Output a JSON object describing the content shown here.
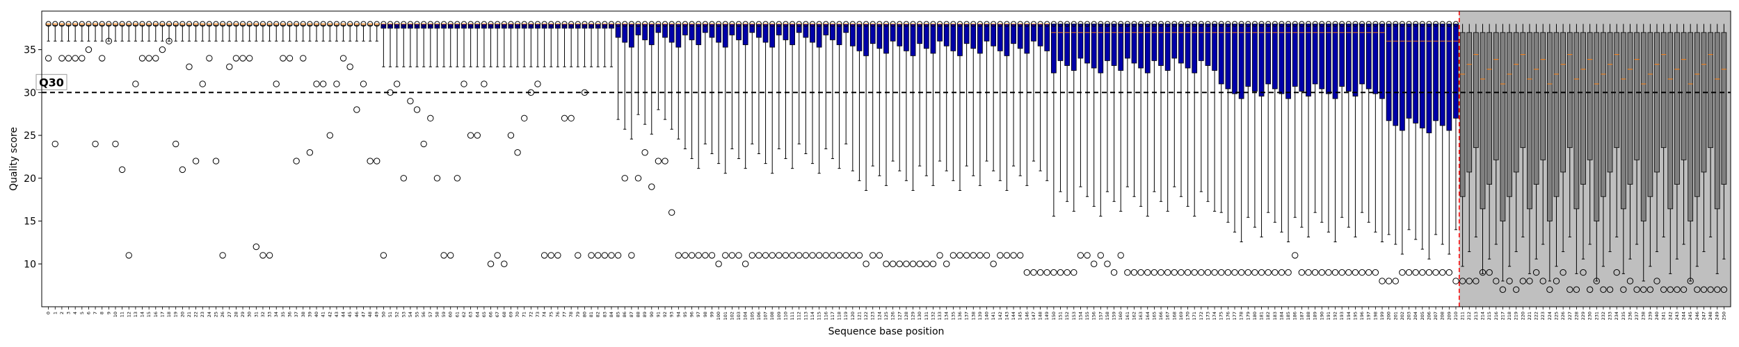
{
  "chart_data": {
    "type": "boxplot",
    "xlabel": "Sequence base position",
    "ylabel": "Quality score",
    "ylim": [
      5,
      39.5
    ],
    "yticks": [
      10,
      15,
      20,
      25,
      30,
      35
    ],
    "positions": {
      "start": 0,
      "end": 250,
      "label_every": 1
    },
    "threshold": {
      "value": 30,
      "label": "Q30"
    },
    "cutoff_position": 211,
    "grid": false,
    "colors": {
      "good_box": "#f3cba6",
      "low_box": "#0000a8",
      "trimmed_box": "#808080",
      "trimmed_region": "#bfbfbf",
      "median_good": "#ff7f0e",
      "median_trimmed": "#ff7f0e",
      "cutoff_line": "#ff0000"
    },
    "segments": [
      {
        "from": 0,
        "to": 49,
        "q1": 38,
        "median": 38,
        "q3": 38,
        "whisker_low": 36,
        "whisker_high": 38
      },
      {
        "from": 50,
        "to": 84,
        "q1": 37.5,
        "median": 38,
        "q3": 38,
        "whisker_low": 33,
        "whisker_high": 38
      },
      {
        "from": 85,
        "to": 94,
        "q1": 37,
        "median": 38,
        "q3": 38,
        "whisker_low": 28,
        "whisker_high": 38
      },
      {
        "from": 95,
        "to": 119,
        "q1": 37,
        "median": 38,
        "q3": 38,
        "whisker_low": 24,
        "whisker_high": 38
      },
      {
        "from": 120,
        "to": 149,
        "q1": 36,
        "median": 38,
        "q3": 38,
        "whisker_low": 22,
        "whisker_high": 38
      },
      {
        "from": 150,
        "to": 174,
        "q1": 34,
        "median": 37,
        "q3": 38,
        "whisker_low": 19,
        "whisker_high": 38
      },
      {
        "from": 175,
        "to": 199,
        "q1": 31,
        "median": 37,
        "q3": 38,
        "whisker_low": 16,
        "whisker_high": 38
      },
      {
        "from": 200,
        "to": 210,
        "q1": 27,
        "median": 36,
        "q3": 38,
        "whisker_low": 14,
        "whisker_high": 38
      },
      {
        "from": 211,
        "to": 250,
        "q1": 20,
        "median": 33,
        "q3": 37,
        "whisker_low": 8,
        "whisker_high": 38
      }
    ],
    "outliers": [
      [
        0,
        34
      ],
      [
        1,
        24
      ],
      [
        2,
        34
      ],
      [
        3,
        34
      ],
      [
        4,
        34
      ],
      [
        5,
        34
      ],
      [
        6,
        35
      ],
      [
        7,
        24
      ],
      [
        8,
        34
      ],
      [
        9,
        36
      ],
      [
        10,
        24
      ],
      [
        11,
        21
      ],
      [
        12,
        11
      ],
      [
        13,
        31
      ],
      [
        14,
        34
      ],
      [
        15,
        34
      ],
      [
        16,
        34
      ],
      [
        17,
        35
      ],
      [
        18,
        36
      ],
      [
        19,
        24
      ],
      [
        20,
        21
      ],
      [
        21,
        33
      ],
      [
        22,
        22
      ],
      [
        23,
        31
      ],
      [
        24,
        34
      ],
      [
        25,
        22
      ],
      [
        26,
        11
      ],
      [
        27,
        33
      ],
      [
        28,
        34
      ],
      [
        29,
        34
      ],
      [
        30,
        34
      ],
      [
        31,
        12
      ],
      [
        32,
        11
      ],
      [
        33,
        11
      ],
      [
        34,
        31
      ],
      [
        35,
        34
      ],
      [
        36,
        34
      ],
      [
        37,
        22
      ],
      [
        38,
        34
      ],
      [
        39,
        23
      ],
      [
        40,
        31
      ],
      [
        41,
        31
      ],
      [
        42,
        25
      ],
      [
        43,
        31
      ],
      [
        44,
        34
      ],
      [
        45,
        33
      ],
      [
        46,
        28
      ],
      [
        47,
        31
      ],
      [
        48,
        22
      ],
      [
        49,
        22
      ],
      [
        50,
        11
      ],
      [
        51,
        30
      ],
      [
        52,
        31
      ],
      [
        53,
        20
      ],
      [
        54,
        29
      ],
      [
        55,
        28
      ],
      [
        56,
        24
      ],
      [
        57,
        27
      ],
      [
        58,
        20
      ],
      [
        59,
        11
      ],
      [
        60,
        11
      ],
      [
        61,
        20
      ],
      [
        62,
        31
      ],
      [
        63,
        25
      ],
      [
        64,
        25
      ],
      [
        65,
        31
      ],
      [
        66,
        10
      ],
      [
        67,
        11
      ],
      [
        68,
        10
      ],
      [
        69,
        25
      ],
      [
        70,
        23
      ],
      [
        71,
        27
      ],
      [
        72,
        30
      ],
      [
        73,
        31
      ],
      [
        74,
        11
      ],
      [
        75,
        11
      ],
      [
        76,
        11
      ],
      [
        77,
        27
      ],
      [
        78,
        27
      ],
      [
        79,
        11
      ],
      [
        80,
        30
      ],
      [
        81,
        11
      ],
      [
        82,
        11
      ],
      [
        83,
        11
      ],
      [
        84,
        11
      ],
      [
        85,
        11
      ],
      [
        86,
        20
      ],
      [
        87,
        11
      ],
      [
        88,
        20
      ],
      [
        89,
        23
      ],
      [
        90,
        19
      ],
      [
        91,
        22
      ],
      [
        92,
        22
      ],
      [
        93,
        16
      ],
      [
        94,
        11
      ],
      [
        95,
        11
      ],
      [
        96,
        11
      ],
      [
        97,
        11
      ],
      [
        98,
        11
      ],
      [
        99,
        11
      ],
      [
        100,
        10
      ],
      [
        101,
        11
      ],
      [
        102,
        11
      ],
      [
        103,
        11
      ],
      [
        104,
        10
      ],
      [
        105,
        11
      ],
      [
        106,
        11
      ],
      [
        107,
        11
      ],
      [
        108,
        11
      ],
      [
        109,
        11
      ],
      [
        110,
        11
      ],
      [
        111,
        11
      ],
      [
        112,
        11
      ],
      [
        113,
        11
      ],
      [
        114,
        11
      ],
      [
        115,
        11
      ],
      [
        116,
        11
      ],
      [
        117,
        11
      ],
      [
        118,
        11
      ],
      [
        119,
        11
      ],
      [
        120,
        11
      ],
      [
        121,
        11
      ],
      [
        122,
        10
      ],
      [
        123,
        11
      ],
      [
        124,
        11
      ],
      [
        125,
        10
      ],
      [
        126,
        10
      ],
      [
        127,
        10
      ],
      [
        128,
        10
      ],
      [
        129,
        10
      ],
      [
        130,
        10
      ],
      [
        131,
        10
      ],
      [
        132,
        10
      ],
      [
        133,
        11
      ],
      [
        134,
        10
      ],
      [
        135,
        11
      ],
      [
        136,
        11
      ],
      [
        137,
        11
      ],
      [
        138,
        11
      ],
      [
        139,
        11
      ],
      [
        140,
        11
      ],
      [
        141,
        10
      ],
      [
        142,
        11
      ],
      [
        143,
        11
      ],
      [
        144,
        11
      ],
      [
        145,
        11
      ],
      [
        146,
        9
      ],
      [
        147,
        9
      ],
      [
        148,
        9
      ],
      [
        149,
        9
      ],
      [
        150,
        9
      ],
      [
        151,
        9
      ],
      [
        152,
        9
      ],
      [
        153,
        9
      ],
      [
        154,
        11
      ],
      [
        155,
        11
      ],
      [
        156,
        10
      ],
      [
        157,
        11
      ],
      [
        158,
        10
      ],
      [
        159,
        9
      ],
      [
        160,
        11
      ],
      [
        161,
        9
      ],
      [
        162,
        9
      ],
      [
        163,
        9
      ],
      [
        164,
        9
      ],
      [
        165,
        9
      ],
      [
        166,
        9
      ],
      [
        167,
        9
      ],
      [
        168,
        9
      ],
      [
        169,
        9
      ],
      [
        170,
        9
      ],
      [
        171,
        9
      ],
      [
        172,
        9
      ],
      [
        173,
        9
      ],
      [
        174,
        9
      ],
      [
        175,
        9
      ],
      [
        176,
        9
      ],
      [
        177,
        9
      ],
      [
        178,
        9
      ],
      [
        179,
        9
      ],
      [
        180,
        9
      ],
      [
        181,
        9
      ],
      [
        182,
        9
      ],
      [
        183,
        9
      ],
      [
        184,
        9
      ],
      [
        185,
        9
      ],
      [
        186,
        11
      ],
      [
        187,
        9
      ],
      [
        188,
        9
      ],
      [
        189,
        9
      ],
      [
        190,
        9
      ],
      [
        191,
        9
      ],
      [
        192,
        9
      ],
      [
        193,
        9
      ],
      [
        194,
        9
      ],
      [
        195,
        9
      ],
      [
        196,
        9
      ],
      [
        197,
        9
      ],
      [
        198,
        9
      ],
      [
        199,
        8
      ],
      [
        200,
        8
      ],
      [
        201,
        8
      ],
      [
        202,
        9
      ],
      [
        203,
        9
      ],
      [
        204,
        9
      ],
      [
        205,
        9
      ],
      [
        206,
        9
      ],
      [
        207,
        9
      ],
      [
        208,
        9
      ],
      [
        209,
        9
      ],
      [
        210,
        8
      ],
      [
        211,
        8
      ],
      [
        212,
        8
      ],
      [
        213,
        8
      ],
      [
        214,
        9
      ],
      [
        215,
        9
      ],
      [
        216,
        8
      ],
      [
        217,
        7
      ],
      [
        218,
        8
      ],
      [
        219,
        7
      ],
      [
        220,
        8
      ],
      [
        221,
        8
      ],
      [
        222,
        9
      ],
      [
        223,
        8
      ],
      [
        224,
        7
      ],
      [
        225,
        8
      ],
      [
        226,
        9
      ],
      [
        227,
        7
      ],
      [
        228,
        7
      ],
      [
        229,
        9
      ],
      [
        230,
        7
      ],
      [
        231,
        8
      ],
      [
        232,
        7
      ],
      [
        233,
        7
      ],
      [
        234,
        9
      ],
      [
        235,
        7
      ],
      [
        236,
        8
      ],
      [
        237,
        7
      ],
      [
        238,
        7
      ],
      [
        239,
        7
      ],
      [
        240,
        8
      ],
      [
        241,
        7
      ],
      [
        242,
        7
      ],
      [
        243,
        7
      ],
      [
        244,
        7
      ],
      [
        245,
        8
      ],
      [
        246,
        7
      ],
      [
        247,
        7
      ],
      [
        248,
        7
      ],
      [
        249,
        7
      ],
      [
        250,
        7
      ]
    ],
    "top_outlier_value": 38
  }
}
